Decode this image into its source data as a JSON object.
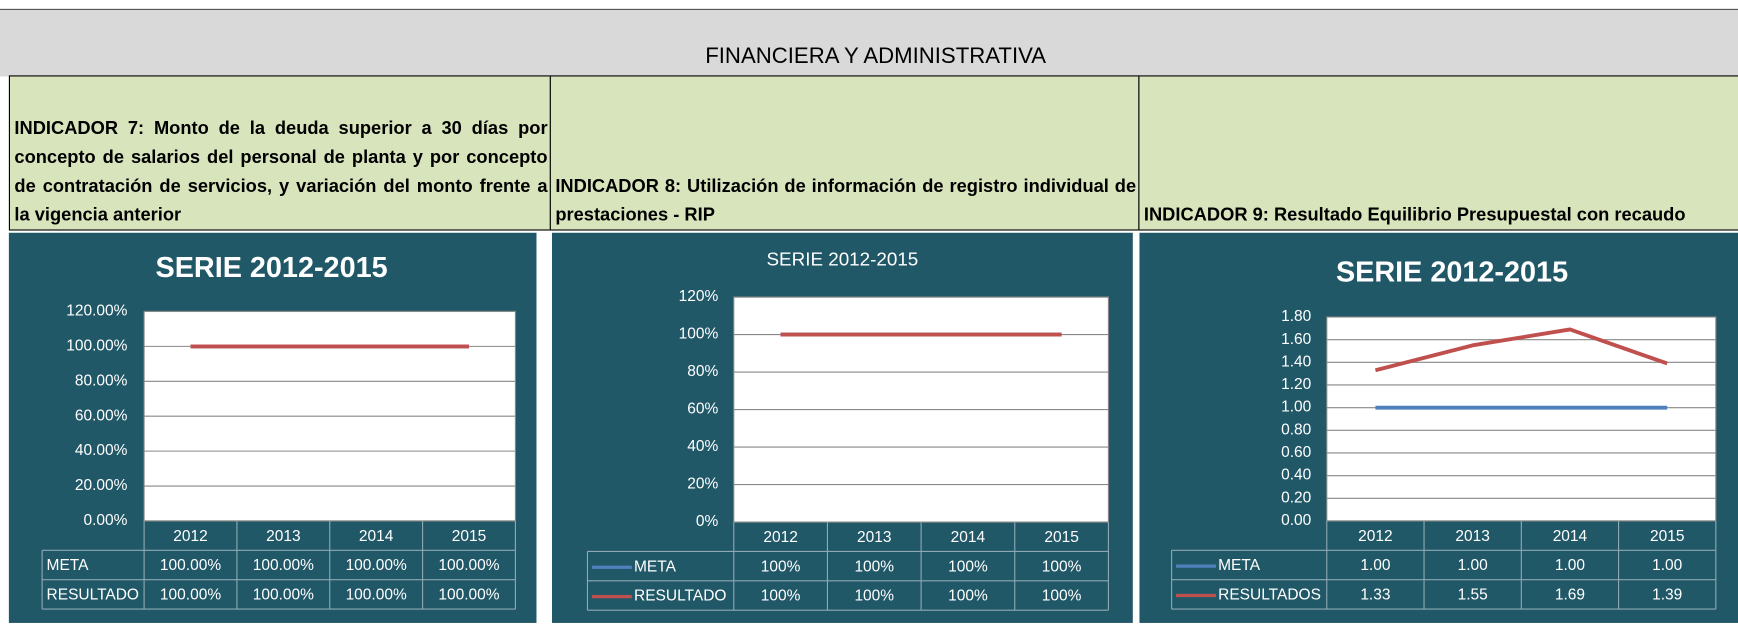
{
  "header": "FINANCIERA Y ADMINISTRATIVA",
  "indicators": [
    "INDICADOR 7: Monto de la deuda superior a 30 días por concepto de salarios del personal de planta y por concepto de contratación de servicios, y variación del monto frente a la vigencia anterior",
    "INDICADOR 8: Utilización de información de registro individual de prestaciones - RIP",
    "INDICADOR 9: Resultado Equilibrio Presupuestal con recaudo"
  ],
  "chart_data": [
    {
      "type": "line",
      "title": "SERIE 2012-2015",
      "categories": [
        "2012",
        "2013",
        "2014",
        "2015"
      ],
      "legend_keys": false,
      "ylim": [
        0,
        120
      ],
      "yticks": [
        {
          "value": 0,
          "label": "0.00%"
        },
        {
          "value": 20,
          "label": "20.00%"
        },
        {
          "value": 40,
          "label": "40.00%"
        },
        {
          "value": 60,
          "label": "60.00%"
        },
        {
          "value": 80,
          "label": "80.00%"
        },
        {
          "value": 100,
          "label": "100.00%"
        },
        {
          "value": 120,
          "label": "120.00%"
        }
      ],
      "series": [
        {
          "name": "META",
          "color": "#4f81bd",
          "values": [
            100,
            100,
            100,
            100
          ],
          "value_labels": [
            "100.00%",
            "100.00%",
            "100.00%",
            "100.00%"
          ]
        },
        {
          "name": "RESULTADO",
          "color": "#c0504d",
          "values": [
            100,
            100,
            100,
            100
          ],
          "value_labels": [
            "100.00%",
            "100.00%",
            "100.00%",
            "100.00%"
          ]
        }
      ]
    },
    {
      "type": "line",
      "title": "SERIE 2012-2015",
      "categories": [
        "2012",
        "2013",
        "2014",
        "2015"
      ],
      "legend_keys": true,
      "ylim": [
        0,
        120
      ],
      "yticks": [
        {
          "value": 0,
          "label": "0%"
        },
        {
          "value": 20,
          "label": "20%"
        },
        {
          "value": 40,
          "label": "40%"
        },
        {
          "value": 60,
          "label": "60%"
        },
        {
          "value": 80,
          "label": "80%"
        },
        {
          "value": 100,
          "label": "100%"
        },
        {
          "value": 120,
          "label": "120%"
        }
      ],
      "series": [
        {
          "name": "META",
          "color": "#4f81bd",
          "values": [
            100,
            100,
            100,
            100
          ],
          "value_labels": [
            "100%",
            "100%",
            "100%",
            "100%"
          ]
        },
        {
          "name": "RESULTADO",
          "color": "#c0504d",
          "values": [
            100,
            100,
            100,
            100
          ],
          "value_labels": [
            "100%",
            "100%",
            "100%",
            "100%"
          ]
        }
      ]
    },
    {
      "type": "line",
      "title": "SERIE 2012-2015",
      "categories": [
        "2012",
        "2013",
        "2014",
        "2015"
      ],
      "legend_keys": true,
      "ylim": [
        0,
        1.8
      ],
      "yticks": [
        {
          "value": 0,
          "label": "0.00"
        },
        {
          "value": 0.2,
          "label": "0.20"
        },
        {
          "value": 0.4,
          "label": "0.40"
        },
        {
          "value": 0.6,
          "label": "0.60"
        },
        {
          "value": 0.8,
          "label": "0.80"
        },
        {
          "value": 1,
          "label": "1.00"
        },
        {
          "value": 1.2,
          "label": "1.20"
        },
        {
          "value": 1.4,
          "label": "1.40"
        },
        {
          "value": 1.6,
          "label": "1.60"
        },
        {
          "value": 1.8,
          "label": "1.80"
        }
      ],
      "series": [
        {
          "name": "META",
          "color": "#4f81bd",
          "values": [
            1,
            1,
            1,
            1
          ],
          "value_labels": [
            "1.00",
            "1.00",
            "1.00",
            "1.00"
          ]
        },
        {
          "name": "RESULTADOS",
          "color": "#c0504d",
          "values": [
            1.33,
            1.55,
            1.69,
            1.39
          ],
          "value_labels": [
            "1.33",
            "1.55",
            "1.69",
            "1.39"
          ]
        }
      ]
    }
  ]
}
